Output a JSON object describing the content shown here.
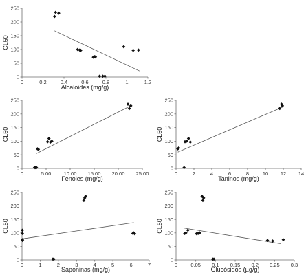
{
  "chart_data": [
    {
      "type": "scatter",
      "xlabel": "Alcaloides (mg/g)",
      "ylabel": "CL50",
      "xlim": [
        0,
        1.2
      ],
      "ylim": [
        0,
        250
      ],
      "xticks": [
        "0",
        "0.2",
        "0.4",
        "0.6",
        "0.8",
        "1",
        "1.2"
      ],
      "yticks": [
        "0",
        "50",
        "100",
        "150",
        "200",
        "250"
      ],
      "points": [
        {
          "x": 0.31,
          "y": 220
        },
        {
          "x": 0.32,
          "y": 235
        },
        {
          "x": 0.35,
          "y": 232
        },
        {
          "x": 0.53,
          "y": 100
        },
        {
          "x": 0.55,
          "y": 98
        },
        {
          "x": 0.56,
          "y": 97
        },
        {
          "x": 0.68,
          "y": 72
        },
        {
          "x": 0.69,
          "y": 74
        },
        {
          "x": 0.7,
          "y": 73
        },
        {
          "x": 0.74,
          "y": 3
        },
        {
          "x": 0.77,
          "y": 3
        },
        {
          "x": 0.79,
          "y": 3
        },
        {
          "x": 0.97,
          "y": 110
        },
        {
          "x": 1.06,
          "y": 97
        },
        {
          "x": 1.11,
          "y": 98
        }
      ],
      "trendline": [
        {
          "x": 0.31,
          "y": 168
        },
        {
          "x": 1.12,
          "y": 22
        }
      ]
    },
    {
      "type": "scatter",
      "xlabel": "Fenoles (mg/g)",
      "ylabel": "CL50",
      "xlim": [
        0,
        25
      ],
      "ylim": [
        0,
        250
      ],
      "xticks": [
        "0",
        "5.00",
        "10.00",
        "15.00",
        "20.00",
        "25.00"
      ],
      "yticks": [
        "0",
        "50",
        "100",
        "150",
        "200",
        "250"
      ],
      "points": [
        {
          "x": 2.6,
          "y": 3
        },
        {
          "x": 2.8,
          "y": 3
        },
        {
          "x": 3.0,
          "y": 3
        },
        {
          "x": 3.2,
          "y": 72
        },
        {
          "x": 3.4,
          "y": 70
        },
        {
          "x": 5.3,
          "y": 98
        },
        {
          "x": 5.6,
          "y": 110
        },
        {
          "x": 5.9,
          "y": 97
        },
        {
          "x": 6.2,
          "y": 100
        },
        {
          "x": 22.0,
          "y": 236
        },
        {
          "x": 22.3,
          "y": 220
        },
        {
          "x": 22.6,
          "y": 230
        }
      ],
      "trendline": [
        {
          "x": 3.0,
          "y": 55
        },
        {
          "x": 22.8,
          "y": 232
        }
      ]
    },
    {
      "type": "scatter",
      "xlabel": "Taninos (mg/g)",
      "ylabel": "CL50",
      "xlim": [
        0,
        14
      ],
      "ylim": [
        0,
        250
      ],
      "xticks": [
        "0",
        "2",
        "4",
        "6",
        "8",
        "10",
        "12",
        "14"
      ],
      "yticks": [
        "0",
        "50",
        "100",
        "150",
        "200",
        "250"
      ],
      "points": [
        {
          "x": 0.2,
          "y": 72
        },
        {
          "x": 0.3,
          "y": 75
        },
        {
          "x": 0.9,
          "y": 3
        },
        {
          "x": 1.0,
          "y": 98
        },
        {
          "x": 1.2,
          "y": 100
        },
        {
          "x": 1.4,
          "y": 110
        },
        {
          "x": 1.6,
          "y": 97
        },
        {
          "x": 11.6,
          "y": 220
        },
        {
          "x": 11.8,
          "y": 236
        },
        {
          "x": 11.9,
          "y": 230
        }
      ],
      "trendline": [
        {
          "x": 0.2,
          "y": 60
        },
        {
          "x": 11.9,
          "y": 225
        }
      ]
    },
    {
      "type": "scatter",
      "xlabel": "Saponinas (mg/g)",
      "ylabel": "CL50",
      "xlim": [
        0,
        7
      ],
      "ylim": [
        0,
        250
      ],
      "xticks": [
        "0",
        "1",
        "2",
        "3",
        "4",
        "5",
        "6",
        "7"
      ],
      "yticks": [
        "0",
        "50",
        "100",
        "150",
        "200",
        "250"
      ],
      "points": [
        {
          "x": 0.02,
          "y": 110
        },
        {
          "x": 0.02,
          "y": 98
        },
        {
          "x": 0.02,
          "y": 75
        },
        {
          "x": 0.03,
          "y": 72
        },
        {
          "x": 1.7,
          "y": 3
        },
        {
          "x": 1.75,
          "y": 3
        },
        {
          "x": 3.4,
          "y": 220
        },
        {
          "x": 3.45,
          "y": 230
        },
        {
          "x": 3.5,
          "y": 236
        },
        {
          "x": 6.1,
          "y": 98
        },
        {
          "x": 6.15,
          "y": 100
        },
        {
          "x": 6.2,
          "y": 97
        }
      ],
      "trendline": [
        {
          "x": 0.0,
          "y": 78
        },
        {
          "x": 6.15,
          "y": 138
        }
      ]
    },
    {
      "type": "scatter",
      "xlabel": "Glucósidos (µg/g)",
      "ylabel": "CL50",
      "xlim": [
        0,
        0.3
      ],
      "ylim": [
        0,
        250
      ],
      "xticks": [
        "0",
        "0.05",
        "0.1",
        "0.15",
        "0.2",
        "0.25",
        "0.3"
      ],
      "yticks": [
        "0",
        "50",
        "100",
        "150",
        "200",
        "250"
      ],
      "points": [
        {
          "x": 0.022,
          "y": 98
        },
        {
          "x": 0.025,
          "y": 100
        },
        {
          "x": 0.03,
          "y": 110
        },
        {
          "x": 0.052,
          "y": 97
        },
        {
          "x": 0.056,
          "y": 98
        },
        {
          "x": 0.06,
          "y": 100
        },
        {
          "x": 0.066,
          "y": 236
        },
        {
          "x": 0.068,
          "y": 220
        },
        {
          "x": 0.07,
          "y": 230
        },
        {
          "x": 0.093,
          "y": 3
        },
        {
          "x": 0.096,
          "y": 3
        },
        {
          "x": 0.232,
          "y": 72
        },
        {
          "x": 0.245,
          "y": 70
        },
        {
          "x": 0.272,
          "y": 75
        }
      ],
      "trendline": [
        {
          "x": 0.02,
          "y": 118
        },
        {
          "x": 0.265,
          "y": 60
        }
      ]
    }
  ]
}
